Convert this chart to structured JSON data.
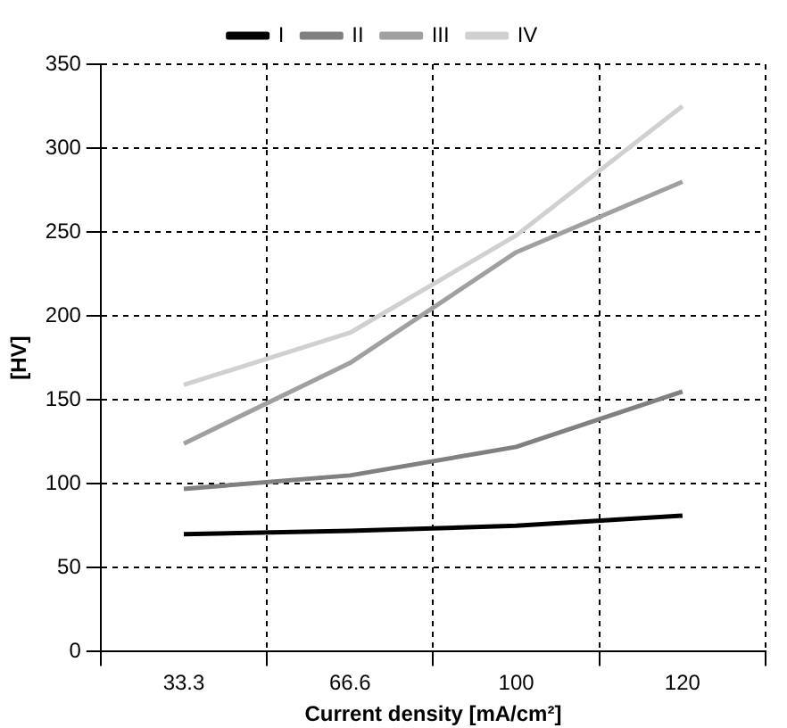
{
  "chart_data": {
    "type": "line",
    "xlabel": "Current density [mA/cm²]",
    "ylabel": "[HV]",
    "categories": [
      "33.3",
      "66.6",
      "100",
      "120"
    ],
    "series": [
      {
        "name": "I",
        "color": "#000000",
        "values": [
          70,
          72,
          75,
          81
        ]
      },
      {
        "name": "II",
        "color": "#808080",
        "values": [
          97,
          105,
          122,
          155
        ]
      },
      {
        "name": "III",
        "color": "#a0a0a0",
        "values": [
          124,
          172,
          238,
          280
        ]
      },
      {
        "name": "IV",
        "color": "#d0d0d0",
        "values": [
          159,
          190,
          248,
          325
        ]
      }
    ],
    "ylim": [
      0,
      350
    ],
    "yticks": [
      0,
      50,
      100,
      150,
      200,
      250,
      300,
      350
    ],
    "grid": true,
    "legend": "top",
    "marker": "none",
    "line_style": "solid"
  }
}
